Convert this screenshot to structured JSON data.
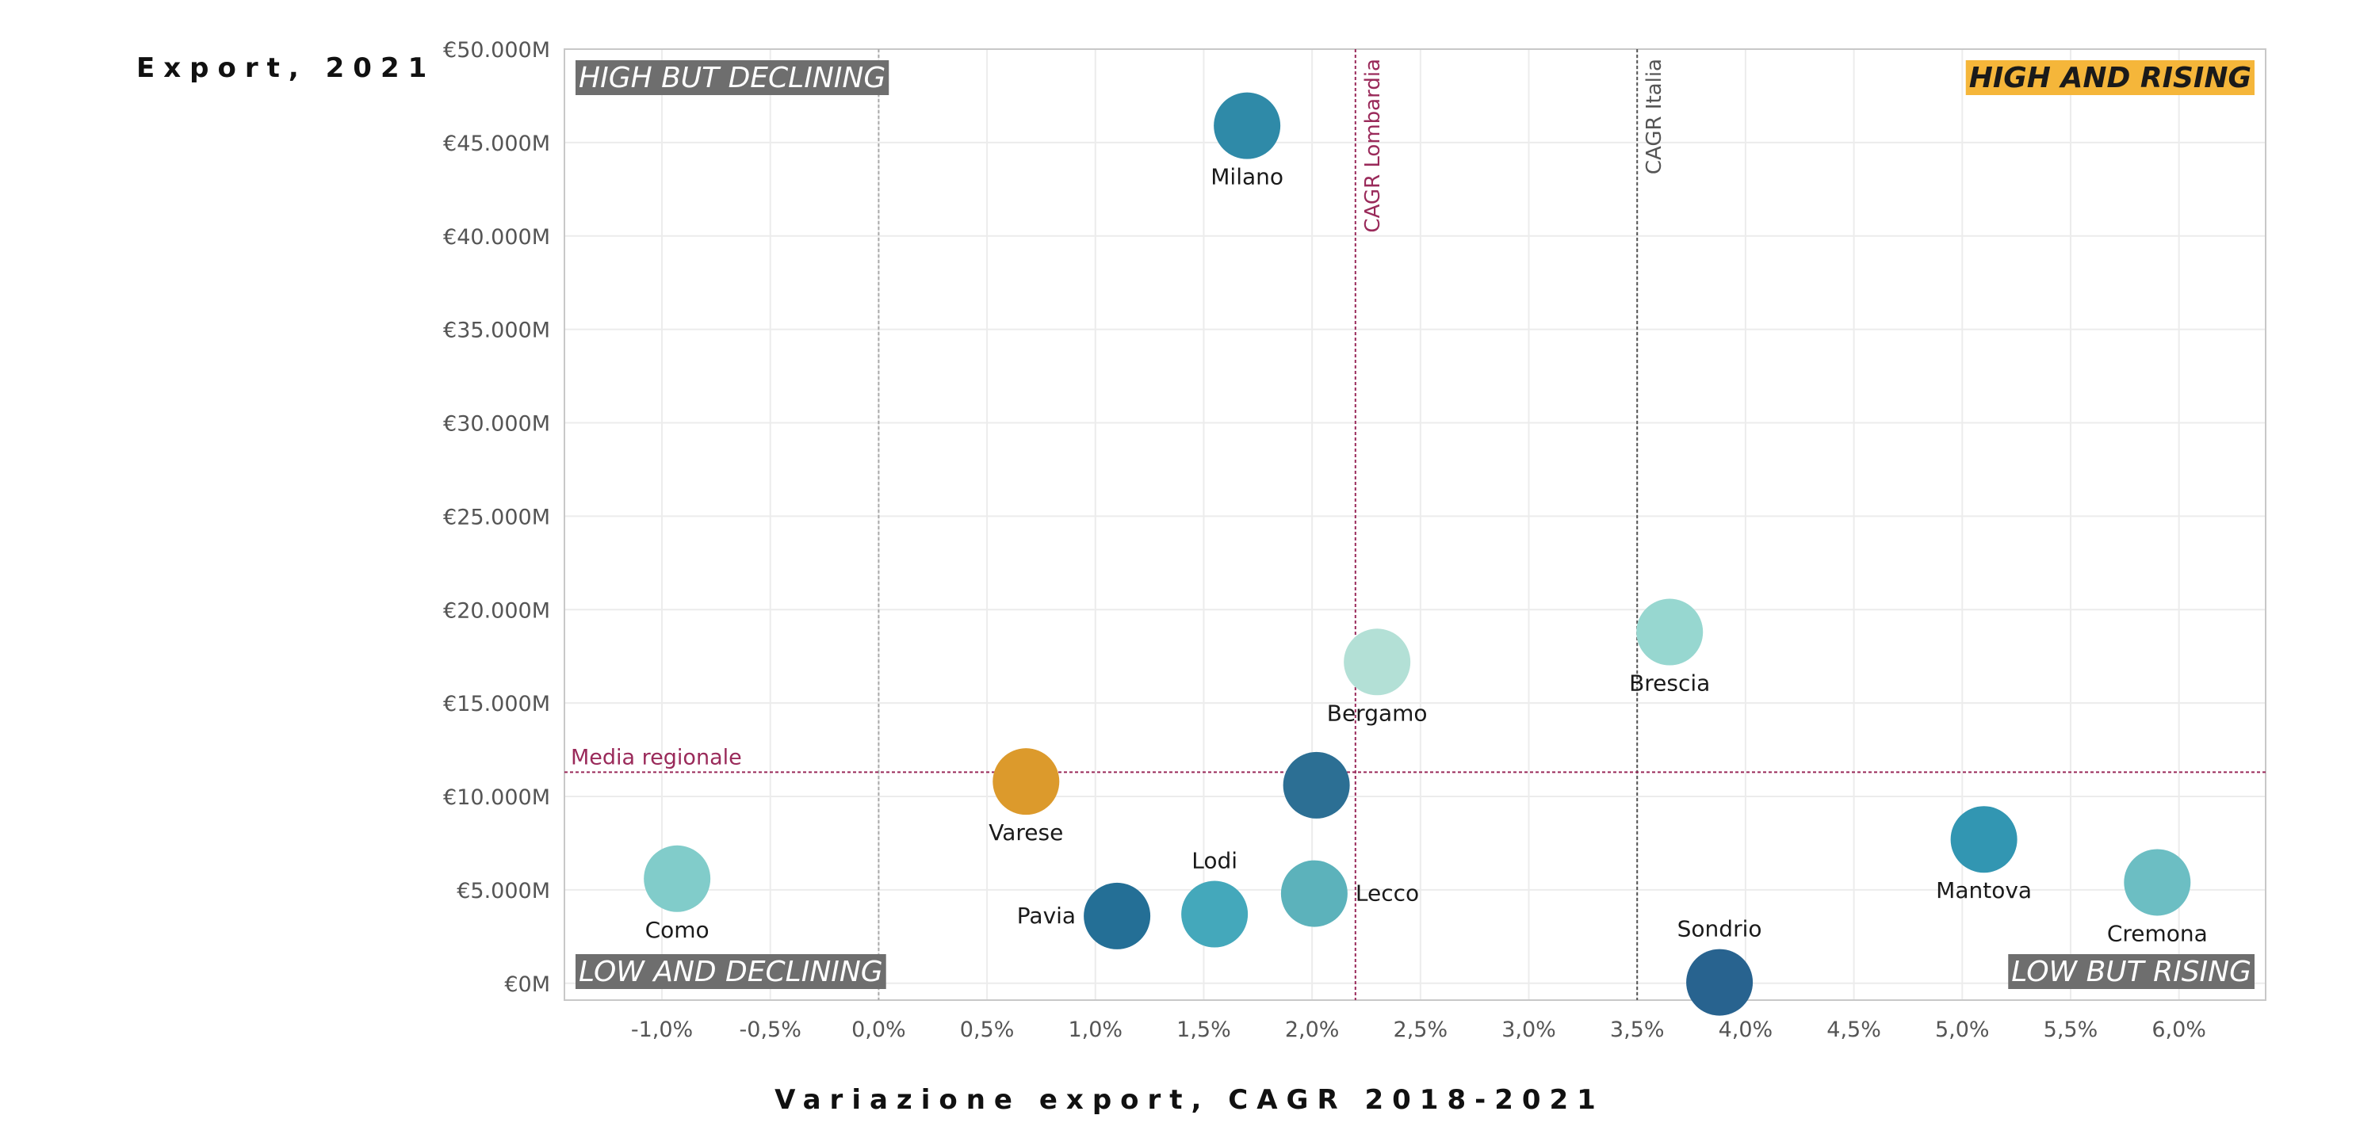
{
  "chart_data": {
    "type": "scatter",
    "title": "",
    "ylabel": "Export, 2021",
    "xlabel": "Variazione export, CAGR 2018-2021",
    "xlim": [
      -1.45,
      6.4
    ],
    "ylim": [
      -900,
      50000
    ],
    "x_ticks": [
      -1.0,
      -0.5,
      0.0,
      0.5,
      1.0,
      1.5,
      2.0,
      2.5,
      3.0,
      3.5,
      4.0,
      4.5,
      5.0,
      5.5,
      6.0
    ],
    "x_tick_labels": [
      "-1,0%",
      "-0,5%",
      "0,0%",
      "0,5%",
      "1,0%",
      "1,5%",
      "2,0%",
      "2,5%",
      "3,0%",
      "3,5%",
      "4,0%",
      "4,5%",
      "5,0%",
      "5,5%",
      "6,0%"
    ],
    "y_ticks": [
      0,
      5000,
      10000,
      15000,
      20000,
      25000,
      30000,
      35000,
      40000,
      45000,
      50000
    ],
    "y_tick_labels": [
      "€0M",
      "€5.000M",
      "€10.000M",
      "€15.000M",
      "€20.000M",
      "€25.000M",
      "€30.000M",
      "€35.000M",
      "€40.000M",
      "€45.000M",
      "€50.000M"
    ],
    "grid": true,
    "points": [
      {
        "label": "Milano",
        "x": 1.7,
        "y": 45900,
        "color": "#2f8aa8",
        "label_pos": "below"
      },
      {
        "label": "Bergamo",
        "x": 2.3,
        "y": 17200,
        "color": "#b3e0d6",
        "label_pos": "below"
      },
      {
        "label": "Brescia",
        "x": 3.65,
        "y": 18800,
        "color": "#97d7d0",
        "label_pos": "below"
      },
      {
        "label": "Varese",
        "x": 0.68,
        "y": 10800,
        "color": "#dc9a2c",
        "label_pos": "below"
      },
      {
        "label": "",
        "x": 2.02,
        "y": 10600,
        "color": "#2c6f94",
        "label_pos": "none"
      },
      {
        "label": "Como",
        "x": -0.93,
        "y": 5600,
        "color": "#81ccca",
        "label_pos": "below"
      },
      {
        "label": "Lodi",
        "x": 1.55,
        "y": 3700,
        "color": "#44a8bb",
        "label_pos": "above"
      },
      {
        "label": "Pavia",
        "x": 1.1,
        "y": 3600,
        "color": "#246f96",
        "label_pos": "left"
      },
      {
        "label": "Lecco",
        "x": 2.01,
        "y": 4800,
        "color": "#5cb2bb",
        "label_pos": "right"
      },
      {
        "label": "Sondrio",
        "x": 3.88,
        "y": 50,
        "color": "#28638f",
        "label_pos": "above"
      },
      {
        "label": "Mantova",
        "x": 5.1,
        "y": 7700,
        "color": "#3296b2",
        "label_pos": "below"
      },
      {
        "label": "Cremona",
        "x": 5.9,
        "y": 5400,
        "color": "#6cbec3",
        "label_pos": "below"
      }
    ],
    "reference_lines": [
      {
        "axis": "x",
        "value": 0.0,
        "label": "",
        "color": "#a9a9a9"
      },
      {
        "axis": "x",
        "value": 2.2,
        "label": "CAGR Lombardia",
        "color": "#9a2a5a"
      },
      {
        "axis": "x",
        "value": 3.5,
        "label": "CAGR Italia",
        "color": "#555555"
      },
      {
        "axis": "y",
        "value": 11300,
        "label": "Media regionale",
        "color": "#9a2a5a"
      }
    ],
    "quadrant_labels": [
      {
        "text": "HIGH BUT DECLINING",
        "corner": "top-left",
        "bg": "#6e6e6e",
        "color": "#ffffff"
      },
      {
        "text": "HIGH AND RISING",
        "corner": "top-right",
        "bg": "#f5b63a",
        "color": "#1a1a1a"
      },
      {
        "text": "LOW AND DECLINING",
        "corner": "bottom-left",
        "bg": "#6e6e6e",
        "color": "#ffffff"
      },
      {
        "text": "LOW BUT RISING",
        "corner": "bottom-right",
        "bg": "#6e6e6e",
        "color": "#ffffff"
      }
    ]
  }
}
